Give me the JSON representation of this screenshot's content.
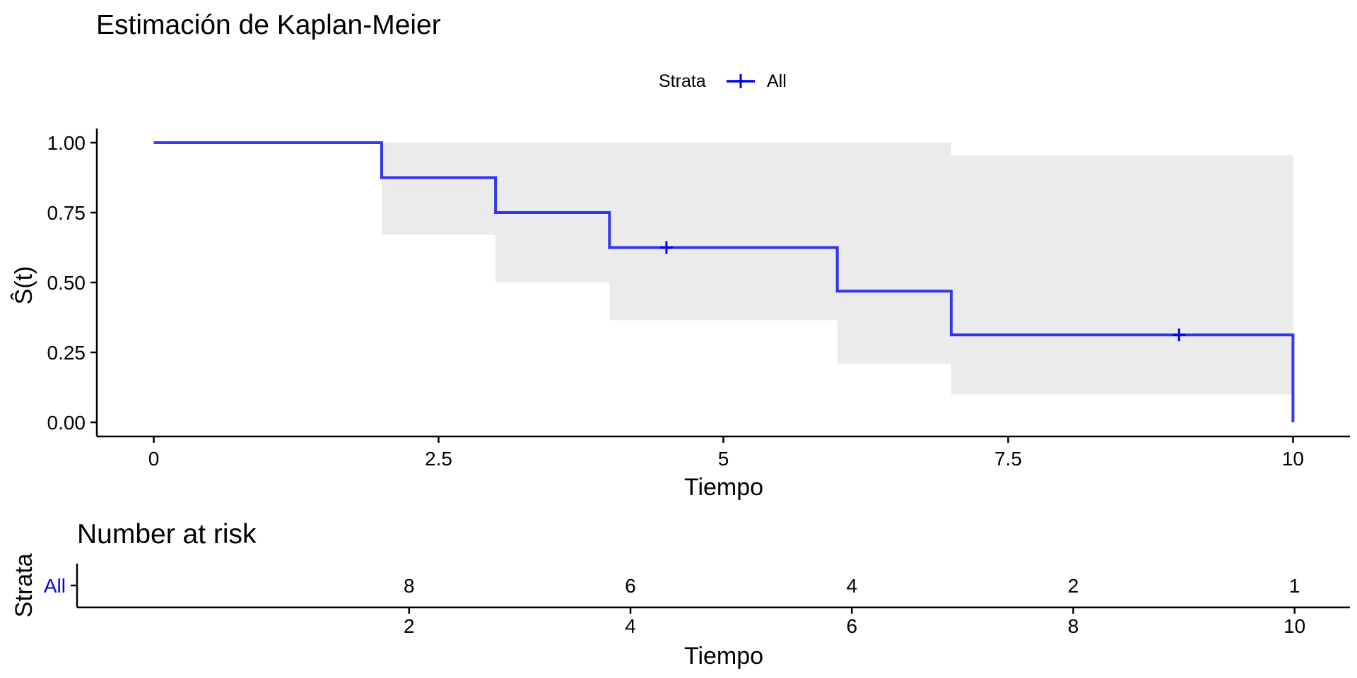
{
  "chart_data": [
    {
      "type": "line",
      "subtype": "kaplan-meier-step",
      "title": "Estimación de Kaplan-Meier",
      "xlabel": "Tiempo",
      "ylabel": "Ŝ(t)",
      "xlim": [
        -0.5,
        10.5
      ],
      "ylim": [
        0,
        1
      ],
      "x_ticks": [
        0,
        2.5,
        5,
        7.5,
        10
      ],
      "x_tick_labels": [
        "0",
        "2.5",
        "5",
        "7.5",
        "10"
      ],
      "y_ticks": [
        0,
        0.25,
        0.5,
        0.75,
        1
      ],
      "y_tick_labels": [
        "0.00",
        "0.25",
        "0.50",
        "0.75",
        "1.00"
      ],
      "grid": false,
      "legend": {
        "position": "top",
        "title": "Strata",
        "entries": [
          "All"
        ]
      },
      "series": [
        {
          "name": "All",
          "color": "#0000ee",
          "steps": [
            {
              "time": 0,
              "surv": 1.0,
              "lower": 1.0,
              "upper": 1.0
            },
            {
              "time": 2,
              "surv": 0.875,
              "lower": 0.67,
              "upper": 1.0
            },
            {
              "time": 3,
              "surv": 0.75,
              "lower": 0.5,
              "upper": 1.0
            },
            {
              "time": 4,
              "surv": 0.625,
              "lower": 0.365,
              "upper": 1.0
            },
            {
              "time": 6,
              "surv": 0.469,
              "lower": 0.21,
              "upper": 1.0
            },
            {
              "time": 7,
              "surv": 0.3125,
              "lower": 0.1,
              "upper": 0.955
            },
            {
              "time": 10,
              "surv": 0.0,
              "lower": 0.0,
              "upper": 0.0
            }
          ],
          "end_time": 10,
          "censor_times": [
            4.5,
            9
          ],
          "ci_color": "#ebebeb"
        }
      ]
    },
    {
      "type": "table",
      "title": "Number at risk",
      "xlabel": "Tiempo",
      "ylabel": "Strata",
      "xlim": [
        -1.0,
        10.5
      ],
      "x_ticks": [
        2,
        4,
        6,
        8,
        10
      ],
      "x_tick_labels": [
        "2",
        "4",
        "6",
        "8",
        "10"
      ],
      "rows": [
        {
          "stratum": "All",
          "color": "#0000ee",
          "times": [
            2,
            4,
            6,
            8,
            10
          ],
          "values": [
            "8",
            "6",
            "4",
            "2",
            "1"
          ]
        }
      ]
    }
  ]
}
